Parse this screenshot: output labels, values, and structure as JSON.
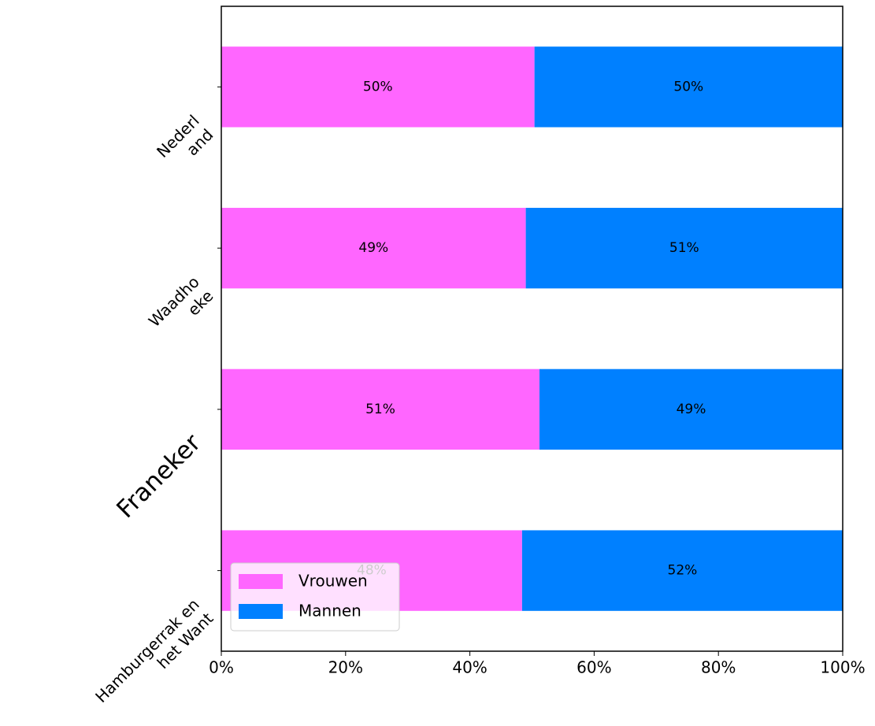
{
  "chart_data": {
    "type": "stacked_barh",
    "categories": [
      "Nederl\nand",
      "Waadho\neke",
      "Franeker",
      "Hamburgerrak en\nhet Want"
    ],
    "series": [
      {
        "name": "Vrouwen",
        "color": "#ff66ff",
        "values": [
          50.4,
          49.0,
          51.2,
          48.4
        ],
        "value_labels": [
          "50%",
          "49%",
          "51%",
          "48%"
        ]
      },
      {
        "name": "Mannen",
        "color": "#0080ff",
        "values": [
          49.6,
          51.0,
          48.8,
          51.6
        ],
        "value_labels": [
          "50%",
          "51%",
          "49%",
          "52%"
        ]
      }
    ],
    "xlim": [
      0,
      100
    ],
    "xticks": [
      {
        "value": 0,
        "label": "0%"
      },
      {
        "value": 20,
        "label": "20%"
      },
      {
        "value": 40,
        "label": "40%"
      },
      {
        "value": 60,
        "label": "60%"
      },
      {
        "value": 80,
        "label": "80%"
      },
      {
        "value": 100,
        "label": "100%"
      }
    ],
    "legend": "lower left"
  }
}
